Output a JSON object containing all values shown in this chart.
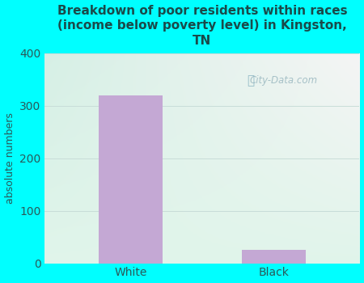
{
  "categories": [
    "White",
    "Black"
  ],
  "values": [
    320,
    25
  ],
  "bar_color": "#c4a8d4",
  "title": "Breakdown of poor residents within races\n(income below poverty level) in Kingston,\nTN",
  "ylabel": "absolute numbers",
  "ylim": [
    0,
    400
  ],
  "yticks": [
    0,
    100,
    200,
    300,
    400
  ],
  "background_outer": "#00ffff",
  "title_color": "#1a4a4a",
  "axis_label_color": "#2a5a5a",
  "tick_label_color": "#2a5a5a",
  "grid_color": "#c8ddd8",
  "watermark": "City-Data.com",
  "title_fontsize": 11,
  "ylabel_fontsize": 9,
  "plot_bg_top_left": "#d8f0e8",
  "plot_bg_top_right": "#e8f4f8",
  "plot_bg_bottom": "#e8f5ee"
}
